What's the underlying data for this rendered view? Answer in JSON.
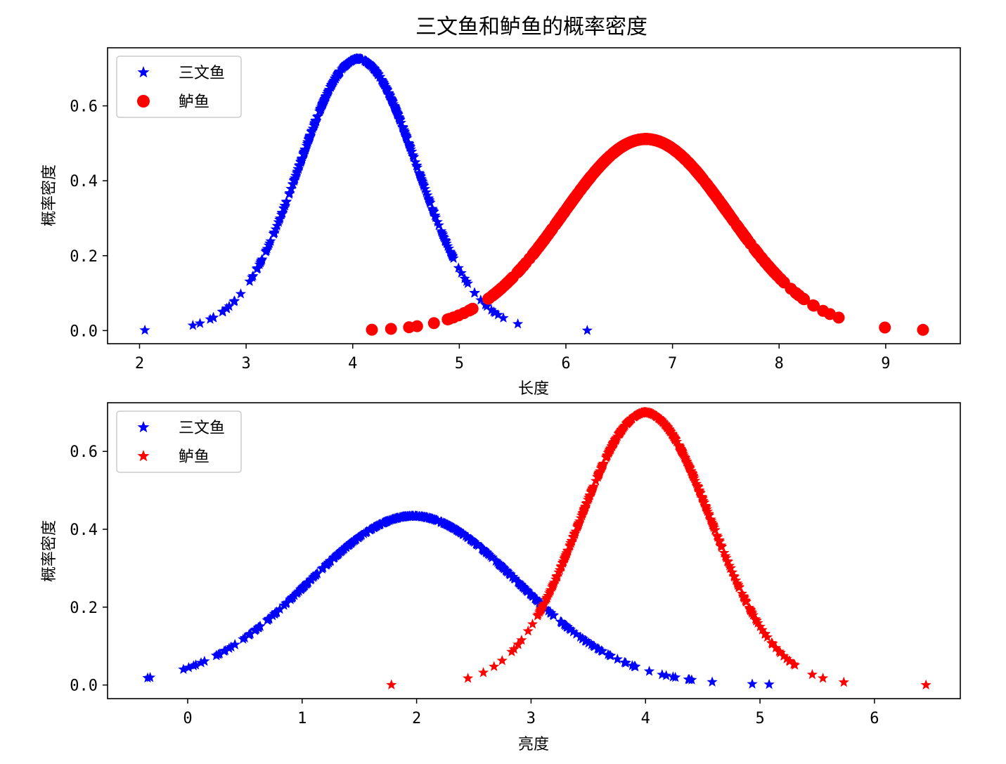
{
  "figure_title": "三文鱼和鲈鱼的概率密度",
  "colors": {
    "salmon": "#0000ff",
    "bass": "#ff0000"
  },
  "chart_data": [
    {
      "type": "scatter",
      "xlabel": "长度",
      "ylabel": "概率密度",
      "xlim": [
        1.7,
        9.7
      ],
      "ylim": [
        -0.035,
        0.755
      ],
      "xticks": [
        "2",
        "3",
        "4",
        "5",
        "6",
        "7",
        "8",
        "9"
      ],
      "yticks": [
        "0.0",
        "0.2",
        "0.4",
        "0.6"
      ],
      "legend": "top-left",
      "grid": false,
      "series": [
        {
          "name": "三文鱼",
          "marker": "star",
          "color": "#0000ff",
          "distribution": "normal",
          "mean": 4.05,
          "std": 0.55,
          "x_range": [
            2.05,
            6.2
          ]
        },
        {
          "name": "鲈鱼",
          "marker": "circle",
          "color": "#ff0000",
          "distribution": "normal",
          "mean": 6.75,
          "std": 0.78,
          "x_range": [
            4.18,
            9.35
          ]
        }
      ]
    },
    {
      "type": "scatter",
      "xlabel": "亮度",
      "ylabel": "概率密度",
      "xlim": [
        -0.7,
        6.75
      ],
      "ylim": [
        -0.035,
        0.725
      ],
      "xticks": [
        "0",
        "1",
        "2",
        "3",
        "4",
        "5",
        "6"
      ],
      "yticks": [
        "0.0",
        "0.2",
        "0.4",
        "0.6"
      ],
      "legend": "top-left",
      "grid": false,
      "series": [
        {
          "name": "三文鱼",
          "marker": "star",
          "color": "#0000ff",
          "distribution": "normal",
          "mean": 1.97,
          "std": 0.92,
          "x_range": [
            -0.35,
            5.08
          ]
        },
        {
          "name": "鲈鱼",
          "marker": "star",
          "color": "#ff0000",
          "distribution": "normal",
          "mean": 4.0,
          "std": 0.57,
          "x_range": [
            1.78,
            6.45
          ]
        }
      ]
    }
  ]
}
